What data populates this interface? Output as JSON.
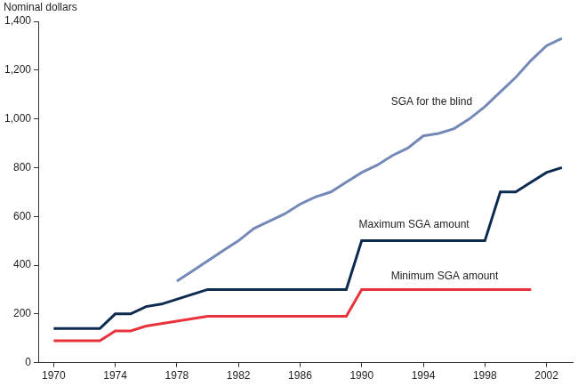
{
  "chart_data": {
    "type": "line",
    "ylabel": "Nominal dollars",
    "x": [
      1970,
      1971,
      1972,
      1973,
      1974,
      1975,
      1976,
      1977,
      1978,
      1979,
      1980,
      1981,
      1982,
      1983,
      1984,
      1985,
      1986,
      1987,
      1988,
      1989,
      1990,
      1991,
      1992,
      1993,
      1994,
      1995,
      1996,
      1997,
      1998,
      1999,
      2000,
      2001,
      2002,
      2003
    ],
    "series": [
      {
        "name": "SGA for the blind",
        "color": "#7489b8",
        "values": [
          null,
          null,
          null,
          null,
          null,
          null,
          null,
          null,
          334,
          375,
          417,
          459,
          500,
          550,
          580,
          610,
          650,
          680,
          700,
          740,
          780,
          810,
          850,
          880,
          930,
          940,
          960,
          1000,
          1050,
          1110,
          1170,
          1240,
          1300,
          1330
        ]
      },
      {
        "name": "Maximum SGA amount",
        "color": "#0d2a4f",
        "values": [
          140,
          140,
          140,
          140,
          200,
          200,
          230,
          240,
          260,
          280,
          300,
          300,
          300,
          300,
          300,
          300,
          300,
          300,
          300,
          300,
          500,
          500,
          500,
          500,
          500,
          500,
          500,
          500,
          500,
          700,
          700,
          740,
          780,
          800
        ]
      },
      {
        "name": "Minimum SGA amount",
        "color": "#e8333c",
        "values": [
          90,
          90,
          90,
          90,
          130,
          130,
          150,
          160,
          170,
          180,
          190,
          190,
          190,
          190,
          190,
          190,
          190,
          190,
          190,
          190,
          300,
          300,
          300,
          300,
          300,
          300,
          300,
          300,
          300,
          300,
          300,
          300,
          null,
          null
        ]
      }
    ],
    "xlim": [
      1969,
      2003.7
    ],
    "xticks": [
      1970,
      1974,
      1978,
      1982,
      1986,
      1990,
      1994,
      1998,
      2002
    ],
    "ylim": [
      0,
      1400
    ],
    "yticks": [
      0,
      200,
      400,
      600,
      800,
      {
        "value": 1000,
        "label": "1,000"
      },
      {
        "value": 1200,
        "label": "1,200"
      },
      {
        "value": 1400,
        "label": "1,400"
      }
    ],
    "grid": false
  }
}
